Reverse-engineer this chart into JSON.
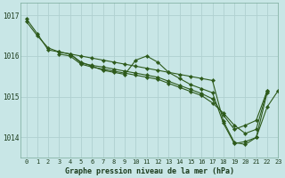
{
  "title": "Graphe pression niveau de la mer (hPa)",
  "background_color": "#c8e6e6",
  "line_color": "#2d5a1b",
  "grid_color": "#b0d0d0",
  "xlim": [
    -0.5,
    23
  ],
  "ylim": [
    1013.5,
    1017.3
  ],
  "yticks": [
    1014,
    1015,
    1016,
    1017
  ],
  "ytick_labels": [
    "1014",
    "1015",
    "1016",
    "1017"
  ],
  "xticks": [
    0,
    1,
    2,
    3,
    4,
    5,
    6,
    7,
    8,
    9,
    10,
    11,
    12,
    13,
    14,
    15,
    16,
    17,
    18,
    19,
    20,
    21,
    22,
    23
  ],
  "series": [
    [
      1016.85,
      1016.5,
      1016.2,
      1016.1,
      1016.05,
      1015.85,
      1015.75,
      1015.65,
      1015.6,
      1015.55,
      1015.9,
      1016.0,
      1015.85,
      1015.6,
      1015.45,
      1015.3,
      1015.2,
      1015.1,
      1014.35,
      1013.85,
      1013.9,
      1014.0,
      1015.1,
      null
    ],
    [
      null,
      null,
      null,
      1016.05,
      1016.0,
      1015.8,
      1015.73,
      1015.68,
      1015.63,
      1015.58,
      1015.53,
      1015.48,
      1015.43,
      1015.33,
      1015.23,
      1015.13,
      1015.03,
      1014.85,
      1014.6,
      1014.3,
      1014.1,
      1014.2,
      1015.15,
      null
    ],
    [
      null,
      null,
      null,
      null,
      1016.05,
      1015.83,
      1015.77,
      1015.73,
      1015.68,
      1015.63,
      1015.58,
      1015.53,
      1015.48,
      1015.38,
      1015.28,
      1015.18,
      1015.08,
      1014.95,
      1014.55,
      1014.2,
      1014.3,
      1014.42,
      1015.15,
      null
    ],
    [
      1016.92,
      1016.55,
      1016.15,
      1016.1,
      1016.05,
      1016.0,
      1015.95,
      1015.9,
      1015.85,
      1015.8,
      1015.75,
      1015.7,
      1015.65,
      1015.6,
      1015.55,
      1015.5,
      1015.45,
      1015.4,
      1014.4,
      1013.88,
      1013.83,
      1014.0,
      1014.75,
      1015.15
    ]
  ]
}
